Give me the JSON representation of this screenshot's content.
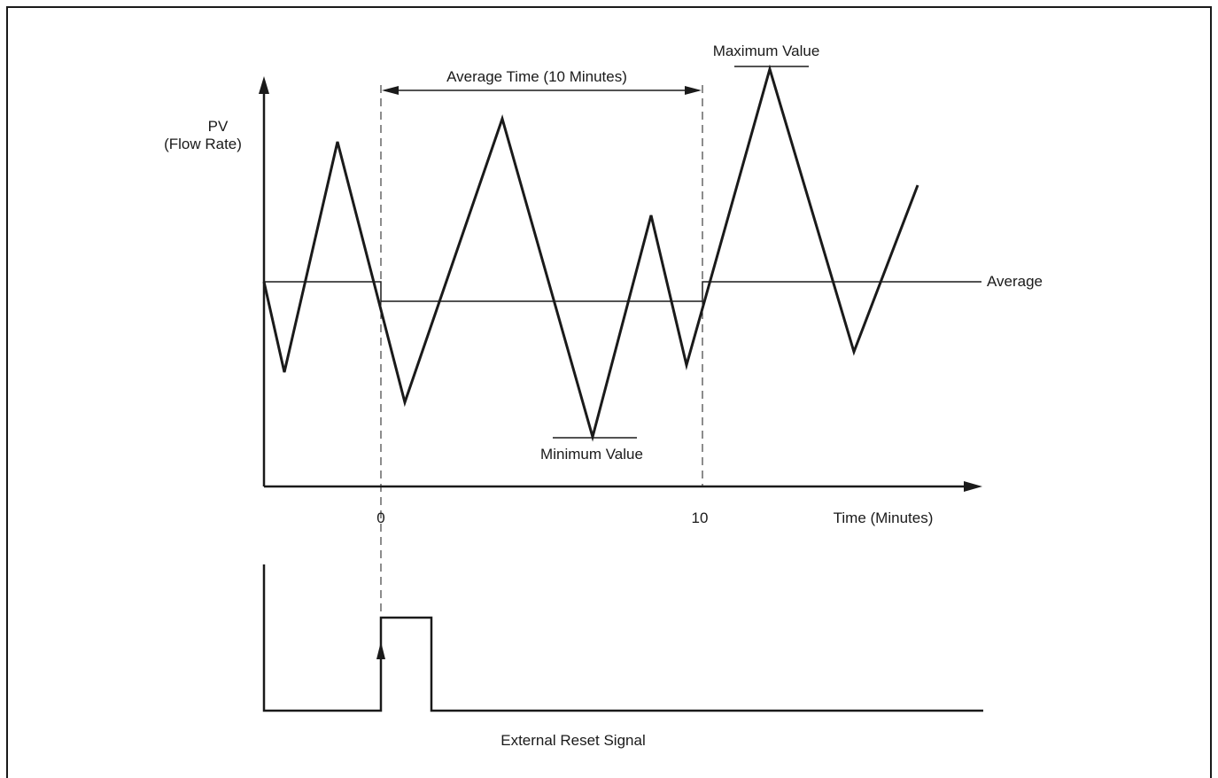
{
  "diagram": {
    "y_axis_label_line1": "PV",
    "y_axis_label_line2": "(Flow Rate)",
    "x_axis_label": "Time (Minutes)",
    "tick_0": "0",
    "tick_10": "10",
    "average_time_label": "Average Time (10 Minutes)",
    "maximum_label": "Maximum Value",
    "minimum_label": "Minimum Value",
    "average_label": "Average",
    "reset_signal_label": "External Reset Signal"
  },
  "colors": {
    "line": "#1a1a1a",
    "border": "#1a1a1a",
    "background": "#ffffff"
  }
}
